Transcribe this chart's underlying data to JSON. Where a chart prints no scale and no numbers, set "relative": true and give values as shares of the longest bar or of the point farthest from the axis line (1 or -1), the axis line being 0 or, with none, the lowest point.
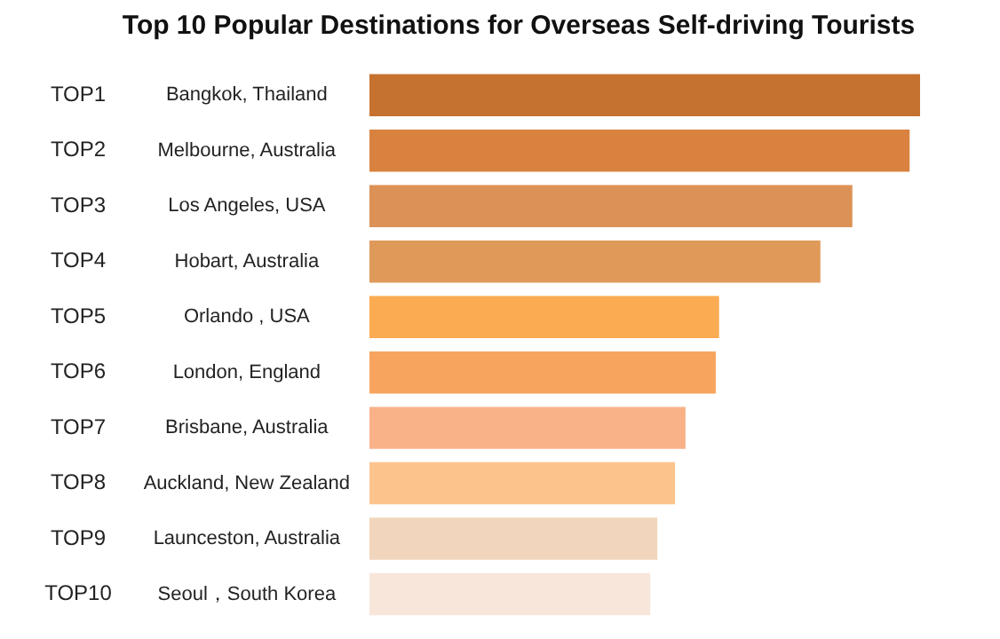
{
  "chart_data": {
    "type": "bar",
    "orientation": "horizontal",
    "relative": true,
    "title": "Top 10 Popular Destinations for Overseas Self-driving Tourists",
    "categories": [
      "Bangkok, Thailand",
      "Melbourne, Australia",
      "Los Angeles, USA",
      "Hobart, Australia",
      "Orlando , USA",
      "London, England",
      "Brisbane, Australia",
      "Auckland, New Zealand",
      "Launceston, Australia",
      "Seoul，South Korea"
    ],
    "annotations": [
      "TOP1",
      "TOP2",
      "TOP3",
      "TOP4",
      "TOP5",
      "TOP6",
      "TOP7",
      "TOP8",
      "TOP9",
      "TOP10"
    ],
    "values": [
      1,
      0.981,
      0.877,
      0.819,
      0.635,
      0.629,
      0.574,
      0.555,
      0.523,
      0.51
    ],
    "colors": [
      "#c57230",
      "#d9823f",
      "#dc9256",
      "#df9a5a",
      "#fbab51",
      "#f7a55e",
      "#f9b187",
      "#fcc48c",
      "#f1d6bd",
      "#f7e6d9"
    ],
    "legend": false
  }
}
